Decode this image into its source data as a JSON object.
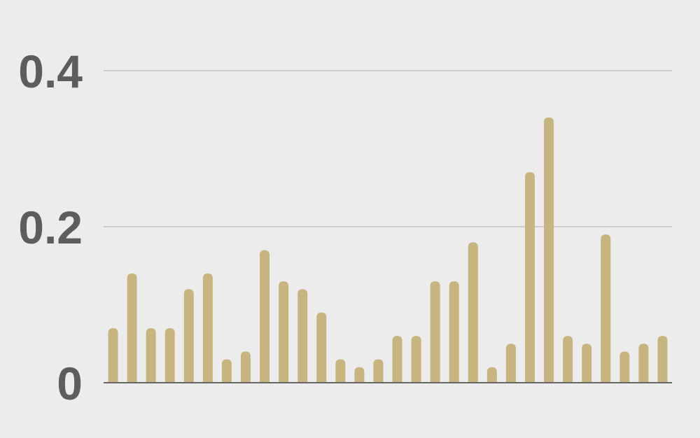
{
  "chart_data": {
    "type": "bar",
    "title": "",
    "xlabel": "",
    "ylabel": "",
    "ylim": [
      0,
      0.4
    ],
    "yticks": [
      0,
      0.2,
      0.4
    ],
    "ytick_labels": [
      "0",
      "0.2",
      "0.4"
    ],
    "grid": true,
    "values": [
      0.07,
      0.14,
      0.07,
      0.07,
      0.12,
      0.14,
      0.03,
      0.04,
      0.17,
      0.13,
      0.12,
      0.09,
      0.03,
      0.02,
      0.03,
      0.06,
      0.06,
      0.13,
      0.13,
      0.18,
      0.02,
      0.05,
      0.27,
      0.34,
      0.06,
      0.05,
      0.19,
      0.04,
      0.05,
      0.06
    ],
    "colors": {
      "bar": "#c8b47e",
      "background": "#ececec",
      "grid": "#cccccc",
      "axis": "#666666",
      "text": "#5d5d5d"
    }
  }
}
